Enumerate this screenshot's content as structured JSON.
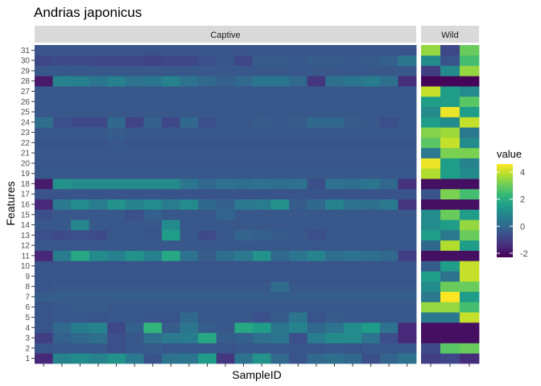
{
  "chart_data": {
    "type": "heatmap",
    "title": "Andrias japonicus",
    "xlabel": "SampleID",
    "ylabel": "Features",
    "facets": [
      "Captive",
      "Wild"
    ],
    "features": [
      "1",
      "2",
      "3",
      "4",
      "5",
      "6",
      "7",
      "8",
      "9",
      "10",
      "11",
      "12",
      "13",
      "14",
      "15",
      "16",
      "17",
      "18",
      "19",
      "20",
      "21",
      "22",
      "23",
      "24",
      "25",
      "26",
      "27",
      "28",
      "29",
      "30",
      "31"
    ],
    "n_samples": {
      "Captive": 21,
      "Wild": 3
    },
    "legend": {
      "title": "value",
      "ticks": [
        -2,
        0,
        2,
        4
      ],
      "range": [
        -2.3,
        4.6
      ],
      "position": "right"
    },
    "colorscale": "viridis",
    "values": {
      "Captive": [
        [
          -1.5,
          0.8,
          1.0,
          0.8,
          1.2,
          0.5,
          -0.5,
          0.3,
          0.4,
          1.5,
          -1.2,
          0.3,
          1.2,
          0.0,
          -0.5,
          0.0,
          0.2,
          0.0,
          -0.6,
          -0.1,
          0.3
        ],
        [
          -0.5,
          -0.4,
          -0.4,
          -0.4,
          -0.6,
          -0.4,
          -0.3,
          -0.4,
          -0.4,
          -0.4,
          -0.5,
          -0.4,
          -0.4,
          -0.4,
          -0.5,
          -0.5,
          -0.4,
          -0.5,
          -0.4,
          -0.4,
          -0.4
        ],
        [
          -1.0,
          -0.2,
          0.0,
          0.2,
          -0.6,
          -0.4,
          0.2,
          0.5,
          0.6,
          1.8,
          -0.3,
          -0.2,
          0.2,
          0.4,
          -0.6,
          0.6,
          1.0,
          1.0,
          0.3,
          -0.6,
          -1.5
        ],
        [
          -0.5,
          0.0,
          0.6,
          0.8,
          -0.8,
          -0.2,
          2.2,
          -0.3,
          0.4,
          -0.3,
          -0.4,
          1.8,
          1.5,
          0.4,
          0.8,
          0.0,
          0.3,
          1.0,
          1.5,
          0.3,
          -1.5
        ],
        [
          -0.5,
          -0.4,
          -0.4,
          -0.5,
          -0.4,
          -0.4,
          -0.5,
          -0.5,
          0.0,
          -0.4,
          -0.4,
          -0.4,
          -0.6,
          -0.3,
          0.4,
          -0.5,
          -0.3,
          -0.4,
          -0.4,
          -0.4,
          -0.4
        ],
        [
          -0.5,
          -0.4,
          -0.3,
          -0.3,
          -0.4,
          -0.4,
          -0.4,
          -0.4,
          -0.4,
          -0.4,
          -0.4,
          -0.4,
          -0.4,
          -0.4,
          -0.4,
          -0.4,
          -0.4,
          -0.4,
          -0.4,
          -0.4,
          -0.4
        ],
        [
          -0.3,
          -0.3,
          -0.3,
          -0.3,
          -0.3,
          -0.3,
          -0.3,
          -0.3,
          -0.3,
          -0.3,
          -0.3,
          -0.3,
          -0.3,
          -0.3,
          -0.3,
          -0.3,
          -0.3,
          -0.3,
          -0.3,
          -0.3,
          -0.3
        ],
        [
          -0.5,
          -0.4,
          -0.4,
          -0.4,
          -0.4,
          -0.4,
          -0.4,
          -0.4,
          -0.4,
          -0.4,
          -0.4,
          -0.4,
          -0.4,
          0.1,
          -0.4,
          -0.4,
          -0.4,
          -0.4,
          -0.4,
          -0.4,
          -0.4
        ],
        [
          -0.5,
          -0.5,
          -0.5,
          -0.5,
          -0.5,
          -0.5,
          -0.5,
          -0.5,
          -0.5,
          -0.5,
          -0.5,
          -0.5,
          -0.5,
          -0.5,
          -0.5,
          -0.5,
          -0.5,
          -0.5,
          -0.5,
          -0.5,
          -0.5
        ],
        [
          -0.5,
          -0.5,
          -0.5,
          -0.5,
          -0.5,
          -0.5,
          -0.5,
          -0.5,
          -0.5,
          -0.5,
          -0.5,
          -0.5,
          -0.5,
          -0.5,
          -0.5,
          -0.5,
          -0.5,
          -0.5,
          -0.5,
          -0.5,
          -0.5
        ],
        [
          -1.5,
          0.6,
          1.8,
          1.0,
          0.7,
          1.2,
          0.7,
          1.8,
          0.3,
          -0.3,
          0.2,
          0.5,
          1.2,
          0.0,
          0.4,
          0.8,
          0.2,
          0.3,
          0.2,
          0.0,
          -1.0
        ],
        [
          -0.4,
          -0.4,
          -0.4,
          -0.4,
          -0.4,
          -0.4,
          -0.4,
          -0.4,
          -0.4,
          -0.4,
          -0.4,
          -0.4,
          -0.4,
          -0.4,
          -0.4,
          -0.4,
          -0.4,
          -0.4,
          -0.4,
          -0.4,
          -0.4
        ],
        [
          -0.6,
          -0.7,
          -0.6,
          -0.7,
          -0.4,
          -0.4,
          -0.5,
          1.5,
          -0.4,
          -0.7,
          -0.4,
          -0.1,
          -0.2,
          -0.3,
          -0.4,
          -0.6,
          -0.4,
          -0.4,
          -0.4,
          -0.4,
          -0.4
        ],
        [
          -0.4,
          -0.4,
          0.9,
          -0.4,
          -0.4,
          -0.4,
          -0.4,
          1.0,
          -0.4,
          -0.4,
          -0.4,
          -0.4,
          -0.4,
          -0.4,
          -0.4,
          -0.4,
          -0.4,
          -0.4,
          -0.4,
          -0.4,
          -0.4
        ],
        [
          -0.6,
          -0.4,
          -0.4,
          -0.4,
          -0.4,
          -0.6,
          -0.2,
          -0.4,
          -0.4,
          -0.4,
          -0.1,
          -0.4,
          -0.4,
          -0.4,
          -0.4,
          -0.4,
          -0.4,
          -0.4,
          -0.4,
          -0.4,
          -0.4
        ],
        [
          -1.5,
          0.5,
          1.0,
          0.6,
          1.2,
          0.8,
          1.0,
          0.6,
          1.0,
          0.0,
          -0.2,
          0.5,
          0.6,
          1.2,
          -0.3,
          0.0,
          0.8,
          0.3,
          0.2,
          0.5,
          -1.2
        ],
        [
          -0.5,
          -0.5,
          -0.5,
          -0.5,
          -0.5,
          -0.5,
          -0.5,
          -0.5,
          -0.5,
          -0.5,
          -0.5,
          -0.5,
          -0.5,
          -0.5,
          -0.5,
          -0.5,
          -0.5,
          -0.5,
          -0.5,
          -0.5,
          -0.5
        ],
        [
          -1.8,
          1.2,
          1.0,
          1.0,
          1.0,
          1.0,
          1.0,
          1.0,
          0.4,
          0.0,
          0.3,
          0.2,
          0.3,
          0.2,
          0.3,
          -0.6,
          0.3,
          0.2,
          0.4,
          0.0,
          -1.3
        ],
        [
          -0.4,
          -0.4,
          -0.4,
          -0.4,
          -0.4,
          -0.4,
          -0.4,
          -0.4,
          -0.4,
          -0.4,
          -0.4,
          -0.4,
          -0.4,
          -0.4,
          -0.4,
          -0.4,
          -0.4,
          -0.4,
          -0.4,
          -0.4,
          -0.4
        ],
        [
          -0.5,
          -0.5,
          -0.5,
          -0.5,
          -0.5,
          -0.5,
          -0.5,
          -0.5,
          -0.5,
          -0.5,
          -0.5,
          -0.5,
          -0.5,
          -0.5,
          -0.5,
          -0.5,
          -0.5,
          -0.5,
          -0.5,
          -0.5,
          -0.5
        ],
        [
          -0.4,
          -0.4,
          -0.4,
          -0.4,
          -0.4,
          -0.4,
          -0.4,
          -0.4,
          -0.4,
          -0.4,
          -0.4,
          -0.4,
          -0.4,
          -0.4,
          -0.4,
          -0.4,
          -0.4,
          -0.4,
          -0.4,
          -0.4,
          -0.4
        ],
        [
          -0.5,
          -0.5,
          -0.5,
          -0.5,
          -0.4,
          -0.5,
          -0.5,
          -0.5,
          -0.5,
          -0.5,
          -0.5,
          -0.5,
          -0.5,
          -0.5,
          -0.5,
          -0.5,
          -0.5,
          -0.5,
          -0.5,
          -0.5,
          -0.5
        ],
        [
          -0.4,
          -0.4,
          -0.4,
          -0.4,
          -0.3,
          -0.4,
          -0.4,
          -0.4,
          -0.4,
          -0.4,
          -0.4,
          -0.4,
          -0.4,
          -0.4,
          -0.4,
          -0.4,
          -0.4,
          -0.4,
          -0.4,
          -0.4,
          -0.4
        ],
        [
          0.2,
          -0.6,
          -0.8,
          -0.8,
          0.0,
          -0.9,
          -0.2,
          -0.8,
          0.0,
          -0.6,
          -0.4,
          -0.4,
          -0.3,
          -0.4,
          -0.3,
          0.0,
          0.0,
          -0.3,
          -0.4,
          -0.6,
          -0.4
        ],
        [
          -0.4,
          -0.4,
          -0.4,
          -0.4,
          -0.4,
          -0.4,
          -0.4,
          -0.4,
          -0.4,
          -0.4,
          -0.4,
          -0.4,
          -0.4,
          -0.4,
          -0.4,
          -0.4,
          -0.4,
          -0.4,
          -0.4,
          -0.4,
          -0.4
        ],
        [
          -0.4,
          -0.4,
          -0.4,
          -0.4,
          -0.4,
          -0.4,
          -0.4,
          -0.4,
          -0.4,
          -0.4,
          -0.4,
          -0.4,
          -0.4,
          -0.4,
          -0.4,
          -0.4,
          -0.4,
          -0.4,
          -0.4,
          -0.4,
          -0.4
        ],
        [
          -0.4,
          -0.4,
          -0.4,
          -0.4,
          -0.4,
          -0.4,
          -0.4,
          -0.4,
          -0.4,
          -0.4,
          -0.4,
          -0.4,
          -0.4,
          -0.4,
          -0.4,
          -0.4,
          -0.4,
          -0.4,
          -0.4,
          -0.4,
          -0.4
        ],
        [
          -1.8,
          0.8,
          0.7,
          0.4,
          0.7,
          0.3,
          0.4,
          0.8,
          0.3,
          0.0,
          -0.2,
          0.0,
          0.4,
          0.4,
          0.0,
          -1.2,
          0.2,
          0.4,
          0.6,
          0.2,
          -1.4
        ],
        [
          -0.4,
          -0.4,
          -0.4,
          -0.4,
          -0.4,
          -0.4,
          -0.4,
          -0.4,
          -0.4,
          -0.4,
          -0.4,
          -0.4,
          -0.4,
          -0.4,
          -0.4,
          -0.4,
          -0.4,
          -0.4,
          -0.4,
          -0.4,
          -0.4
        ],
        [
          -0.8,
          -0.7,
          -0.7,
          -0.8,
          -0.8,
          -0.8,
          -0.9,
          -0.8,
          -0.8,
          -0.6,
          -0.5,
          -0.8,
          -0.3,
          -0.3,
          -0.4,
          -0.3,
          -0.3,
          -0.4,
          -0.3,
          -0.2,
          0.4
        ],
        [
          -0.5,
          -0.5,
          -0.5,
          -0.5,
          -0.5,
          -0.5,
          -0.5,
          -0.5,
          -0.5,
          -0.5,
          -0.5,
          -0.5,
          -0.5,
          -0.5,
          -0.5,
          -0.5,
          -0.5,
          -0.5,
          -0.5,
          -0.5,
          -0.5
        ]
      ],
      "Wild": [
        [
          -1.0,
          -0.8,
          -1.4
        ],
        [
          -0.7,
          2.8,
          3.0
        ],
        [
          -2.0,
          -2.0,
          -2.0
        ],
        [
          -2.0,
          -2.0,
          -2.0
        ],
        [
          0.5,
          0.5,
          4.0
        ],
        [
          3.5,
          3.5,
          2.5
        ],
        [
          0.5,
          4.6,
          1.5
        ],
        [
          1.0,
          3.0,
          3.0
        ],
        [
          1.5,
          0.3,
          4.0
        ],
        [
          -0.3,
          1.5,
          4.0
        ],
        [
          -2.0,
          -2.0,
          -2.0
        ],
        [
          0.0,
          3.8,
          1.5
        ],
        [
          1.5,
          0.5,
          3.0
        ],
        [
          1.0,
          1.5,
          3.5
        ],
        [
          1.0,
          3.0,
          1.5
        ],
        [
          -2.0,
          -2.0,
          -2.0
        ],
        [
          -0.5,
          3.2,
          2.5
        ],
        [
          -2.0,
          -2.0,
          -2.0
        ],
        [
          3.8,
          1.5,
          1.0
        ],
        [
          4.4,
          1.5,
          0.8
        ],
        [
          0.5,
          3.2,
          3.2
        ],
        [
          2.8,
          4.0,
          1.0
        ],
        [
          3.3,
          3.6,
          0.5
        ],
        [
          1.5,
          1.0,
          4.0
        ],
        [
          1.0,
          4.4,
          1.5
        ],
        [
          1.5,
          1.5,
          2.8
        ],
        [
          4.0,
          1.5,
          1.0
        ],
        [
          -2.2,
          -2.2,
          -2.2
        ],
        [
          -1.0,
          1.0,
          3.5
        ],
        [
          1.0,
          -0.5,
          2.5
        ],
        [
          3.5,
          -0.8,
          3.0
        ]
      ]
    }
  }
}
